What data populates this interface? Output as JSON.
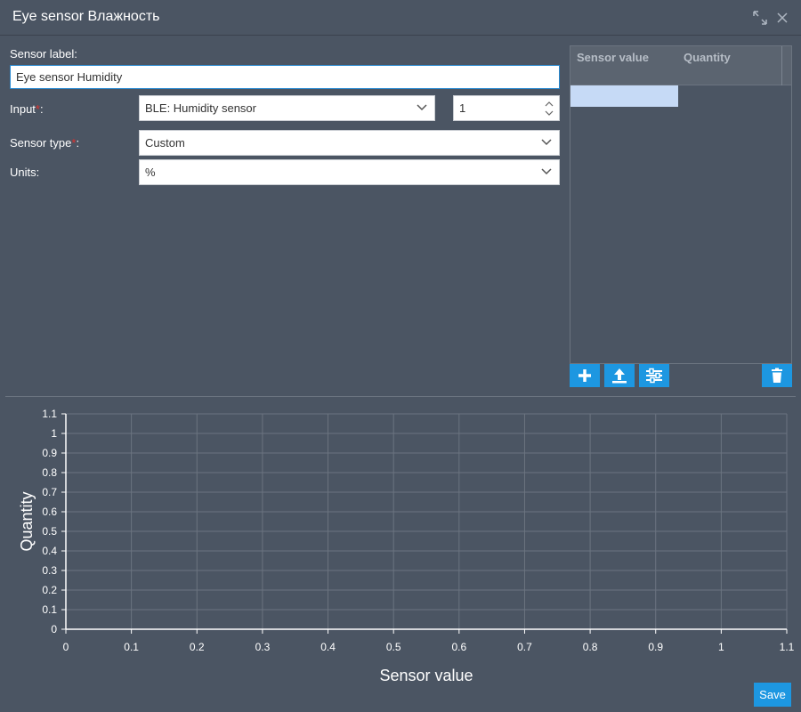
{
  "window": {
    "title": "Eye sensor Влажность",
    "maximize_icon": "expand-icon",
    "close_icon": "close-icon"
  },
  "form": {
    "sensor_label": {
      "label": "Sensor label:",
      "value": "Eye sensor Humidity"
    },
    "input": {
      "label": "Input",
      "required_mark": "*",
      "colon": ":",
      "value": "BLE: Humidity sensor",
      "number": "1"
    },
    "sensor_type": {
      "label": "Sensor type",
      "required_mark": "*",
      "colon": ":",
      "value": "Custom"
    },
    "units": {
      "label": "Units:",
      "value": "%"
    }
  },
  "table": {
    "columns": [
      "Sensor value",
      "Quantity"
    ],
    "rows": [
      {
        "sensor_value": "",
        "quantity": ""
      }
    ],
    "buttons": [
      "add-icon",
      "upload-icon",
      "settings-icon",
      "trash-icon"
    ]
  },
  "chart_data": {
    "type": "line",
    "xlabel": "Sensor value",
    "ylabel": "Quantity",
    "xlim": [
      0,
      1.1
    ],
    "ylim": [
      0,
      1.1
    ],
    "xticks": [
      "0",
      "0.1",
      "0.2",
      "0.3",
      "0.4",
      "0.5",
      "0.6",
      "0.7",
      "0.8",
      "0.9",
      "1",
      "1.1"
    ],
    "yticks": [
      "0",
      "0.1",
      "0.2",
      "0.3",
      "0.4",
      "0.5",
      "0.6",
      "0.7",
      "0.8",
      "0.9",
      "1",
      "1.1"
    ],
    "grid": true,
    "series": []
  },
  "footer": {
    "save_label": "Save"
  },
  "colors": {
    "background": "#4b5563",
    "accent": "#1d97e1",
    "required": "#e0312d",
    "grid": "#6b7480"
  }
}
